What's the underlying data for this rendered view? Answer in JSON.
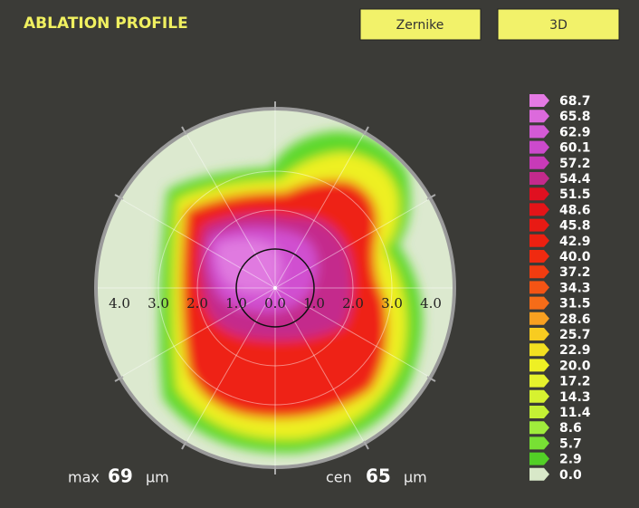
{
  "header": {
    "title": "ABLATION PROFILE"
  },
  "buttons": [
    "Zernike",
    "3D"
  ],
  "map": {
    "axis_labels": [
      "4.0",
      "3.0",
      "2.0",
      "1.0",
      "0.0",
      "1.0",
      "2.0",
      "3.0",
      "4.0"
    ]
  },
  "scale": {
    "entries": [
      {
        "label": "68.7",
        "color": "#e47ae4"
      },
      {
        "label": "65.8",
        "color": "#dc6adc"
      },
      {
        "label": "62.9",
        "color": "#d45ad6"
      },
      {
        "label": "60.1",
        "color": "#cc4acc"
      },
      {
        "label": "57.2",
        "color": "#c83ab8"
      },
      {
        "label": "54.4",
        "color": "#c42a8c"
      },
      {
        "label": "51.5",
        "color": "#e01020"
      },
      {
        "label": "48.6",
        "color": "#e41418"
      },
      {
        "label": "45.8",
        "color": "#e81a14"
      },
      {
        "label": "42.9",
        "color": "#ec2010"
      },
      {
        "label": "40.0",
        "color": "#f02a10"
      },
      {
        "label": "37.2",
        "color": "#f23c10"
      },
      {
        "label": "34.3",
        "color": "#f45414"
      },
      {
        "label": "31.5",
        "color": "#f66c18"
      },
      {
        "label": "28.6",
        "color": "#f8a020"
      },
      {
        "label": "25.7",
        "color": "#f8cc20"
      },
      {
        "label": "22.9",
        "color": "#f2e020"
      },
      {
        "label": "20.0",
        "color": "#eef024"
      },
      {
        "label": "17.2",
        "color": "#e6f22c"
      },
      {
        "label": "14.3",
        "color": "#d6f230"
      },
      {
        "label": "11.4",
        "color": "#c4f034"
      },
      {
        "label": "8.6",
        "color": "#a0ec3c"
      },
      {
        "label": "5.7",
        "color": "#78e034"
      },
      {
        "label": "2.9",
        "color": "#52d026"
      },
      {
        "label": "0.0",
        "color": "#d8e8c8"
      }
    ]
  },
  "stats": [
    {
      "label": "max",
      "value": "69",
      "unit": "µm"
    },
    {
      "label": "cen",
      "value": "65",
      "unit": "µm"
    }
  ]
}
